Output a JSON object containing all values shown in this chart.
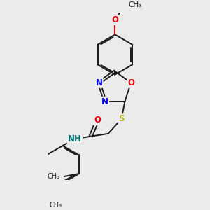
{
  "bg_color": "#ebebeb",
  "bond_color": "#1a1a1a",
  "bond_width": 1.4,
  "atom_colors": {
    "N": "#0000ee",
    "O": "#ee0000",
    "S": "#bbbb00",
    "C": "#1a1a1a",
    "H": "#007070"
  },
  "font_size": 8.5,
  "methoxy_label": "O",
  "methyl_label": "CH₃"
}
